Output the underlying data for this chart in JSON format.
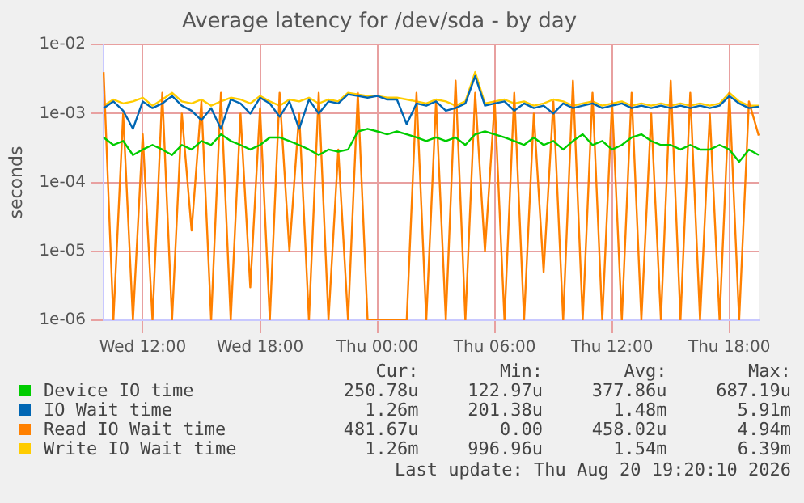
{
  "chart_data": {
    "type": "line",
    "title": "Average latency for /dev/sda - by day",
    "ylabel": "seconds",
    "log": "y",
    "grid": true,
    "legend": "bottom",
    "marker": "none",
    "line_style": "solid",
    "categories": [
      null,
      null,
      null,
      null,
      "Wed 12:00",
      null,
      null,
      null,
      null,
      null,
      null,
      null,
      null,
      null,
      null,
      null,
      "Wed 18:00",
      null,
      null,
      null,
      null,
      null,
      null,
      null,
      null,
      null,
      null,
      null,
      "Thu 00:00",
      null,
      null,
      null,
      null,
      null,
      null,
      null,
      null,
      null,
      null,
      null,
      "Thu 06:00",
      null,
      null,
      null,
      null,
      null,
      null,
      null,
      null,
      null,
      null,
      null,
      "Thu 12:00",
      null,
      null,
      null,
      null,
      null,
      null,
      null,
      null,
      null,
      null,
      null,
      "Thu 18:00",
      null,
      null,
      null
    ],
    "ylim": [
      1e-06,
      0.01
    ],
    "yticks": [
      {
        "value": 1e-06,
        "label": "1e-06"
      },
      {
        "value": 1e-05,
        "label": "1e-05"
      },
      {
        "value": 0.0001,
        "label": "1e-04"
      },
      {
        "value": 0.001,
        "label": "1e-03"
      },
      {
        "value": 0.01,
        "label": "1e-02"
      }
    ],
    "series": [
      {
        "name": "Device IO time",
        "color": "#00cc00",
        "values": [
          0.00045,
          0.00035,
          0.0004,
          0.00025,
          0.0003,
          0.00035,
          0.0003,
          0.00025,
          0.00035,
          0.0003,
          0.0004,
          0.00035,
          0.0005,
          0.0004,
          0.00035,
          0.0003,
          0.00035,
          0.00045,
          0.00045,
          0.0004,
          0.00035,
          0.0003,
          0.00025,
          0.0003,
          0.00028,
          0.0003,
          0.00055,
          0.0006,
          0.00055,
          0.0005,
          0.00055,
          0.0005,
          0.00045,
          0.0004,
          0.00045,
          0.0004,
          0.00045,
          0.00035,
          0.0005,
          0.00055,
          0.0005,
          0.00045,
          0.0004,
          0.00035,
          0.00045,
          0.00035,
          0.0004,
          0.0003,
          0.0004,
          0.0005,
          0.00035,
          0.0004,
          0.0003,
          0.00035,
          0.00045,
          0.0005,
          0.0004,
          0.00035,
          0.00035,
          0.0003,
          0.00035,
          0.0003,
          0.0003,
          0.00035,
          0.0003,
          0.0002,
          0.0003,
          0.00025
        ]
      },
      {
        "name": "IO Wait time",
        "color": "#0066b3",
        "values": [
          0.0012,
          0.0015,
          0.0011,
          0.0006,
          0.0015,
          0.0012,
          0.0014,
          0.0018,
          0.0013,
          0.0011,
          0.0008,
          0.0012,
          0.0006,
          0.0016,
          0.0014,
          0.001,
          0.0017,
          0.0014,
          0.0009,
          0.0015,
          0.0006,
          0.0016,
          0.001,
          0.0015,
          0.0014,
          0.0019,
          0.0018,
          0.0017,
          0.0018,
          0.0016,
          0.0016,
          0.0007,
          0.0014,
          0.0013,
          0.0015,
          0.0011,
          0.0012,
          0.0014,
          0.0035,
          0.0013,
          0.0014,
          0.0015,
          0.0011,
          0.0014,
          0.0012,
          0.0013,
          0.001,
          0.0014,
          0.0012,
          0.0013,
          0.0014,
          0.0012,
          0.0013,
          0.0014,
          0.0012,
          0.0013,
          0.0012,
          0.0013,
          0.0012,
          0.0013,
          0.0012,
          0.0013,
          0.0012,
          0.0013,
          0.0018,
          0.0014,
          0.0012,
          0.00126
        ]
      },
      {
        "name": "Read IO Wait time",
        "color": "#ff8000",
        "values": [
          0.004,
          1e-06,
          0.001,
          1e-06,
          0.0005,
          1e-06,
          0.002,
          1e-06,
          0.001,
          2e-05,
          0.0015,
          1e-06,
          0.002,
          1e-06,
          0.001,
          3e-06,
          0.0012,
          1e-06,
          0.002,
          1e-05,
          0.001,
          1e-06,
          0.002,
          1e-06,
          0.0003,
          1e-06,
          0.002,
          1e-06,
          1e-06,
          1e-06,
          1e-06,
          1e-06,
          0.002,
          1e-06,
          0.0015,
          1e-06,
          0.003,
          1e-06,
          0.002,
          1e-05,
          0.0015,
          1e-06,
          0.002,
          1e-06,
          0.001,
          5e-06,
          0.0015,
          1e-06,
          0.003,
          1e-06,
          0.002,
          1e-06,
          0.0015,
          1e-06,
          0.002,
          1e-06,
          0.001,
          1e-06,
          0.003,
          1e-06,
          0.002,
          1e-06,
          0.001,
          1e-06,
          0.002,
          1e-06,
          0.0015,
          0.00048
        ]
      },
      {
        "name": "Write IO Wait time",
        "color": "#ffcc00",
        "values": [
          0.0013,
          0.0016,
          0.0014,
          0.0015,
          0.0017,
          0.0013,
          0.0016,
          0.002,
          0.0015,
          0.0014,
          0.0016,
          0.0013,
          0.0015,
          0.0017,
          0.0016,
          0.0014,
          0.0018,
          0.0015,
          0.0013,
          0.0016,
          0.0015,
          0.0017,
          0.0014,
          0.0016,
          0.0015,
          0.002,
          0.0019,
          0.0018,
          0.0018,
          0.0017,
          0.0017,
          0.0016,
          0.0015,
          0.0014,
          0.0016,
          0.0015,
          0.0013,
          0.0015,
          0.004,
          0.0014,
          0.0015,
          0.0016,
          0.0014,
          0.0015,
          0.0013,
          0.0014,
          0.0016,
          0.0015,
          0.0013,
          0.0014,
          0.0015,
          0.0013,
          0.0014,
          0.0015,
          0.0013,
          0.0014,
          0.0013,
          0.0014,
          0.0013,
          0.0014,
          0.0013,
          0.0014,
          0.0013,
          0.0014,
          0.002,
          0.0015,
          0.0013,
          0.0013
        ]
      }
    ],
    "annotations": [
      "Cur:",
      "Min:",
      "Avg:",
      "Max:",
      "250.78u",
      "122.97u",
      "377.86u",
      "687.19u",
      "1.26m",
      "201.38u",
      "1.48m",
      "5.91m",
      "481.67u",
      "0.00",
      "458.02u",
      "4.94m",
      "1.26m",
      "996.96u",
      "1.54m",
      "6.39m",
      "Last update: Thu Aug 20 19:20:10 2026"
    ]
  }
}
